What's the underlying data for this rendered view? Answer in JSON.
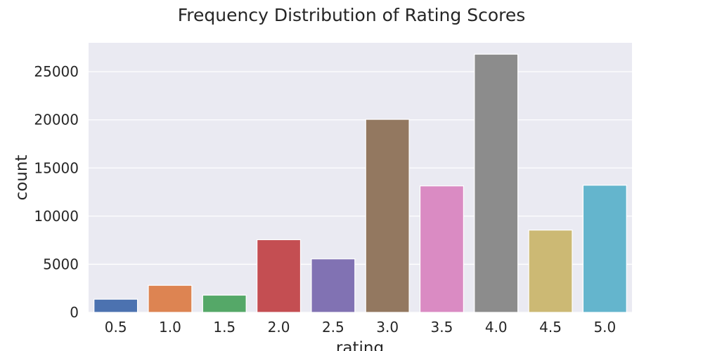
{
  "chart_data": {
    "type": "bar",
    "title": "Frequency Distribution of Rating Scores",
    "xlabel": "rating",
    "ylabel": "count",
    "categories": [
      "0.5",
      "1.0",
      "1.5",
      "2.0",
      "2.5",
      "3.0",
      "3.5",
      "4.0",
      "4.5",
      "5.0"
    ],
    "values": [
      1370,
      2810,
      1790,
      7550,
      5560,
      20050,
      13140,
      26820,
      8550,
      13210
    ],
    "colors": [
      "#4c72b0",
      "#dd8452",
      "#55a868",
      "#c44e52",
      "#8172b3",
      "#937860",
      "#da8bc3",
      "#8c8c8c",
      "#ccb974",
      "#64b5cd"
    ],
    "ylim": [
      0,
      28000
    ],
    "yticks": [
      0,
      5000,
      10000,
      15000,
      20000,
      25000
    ],
    "grid": true,
    "background": "#eaeaf2"
  }
}
